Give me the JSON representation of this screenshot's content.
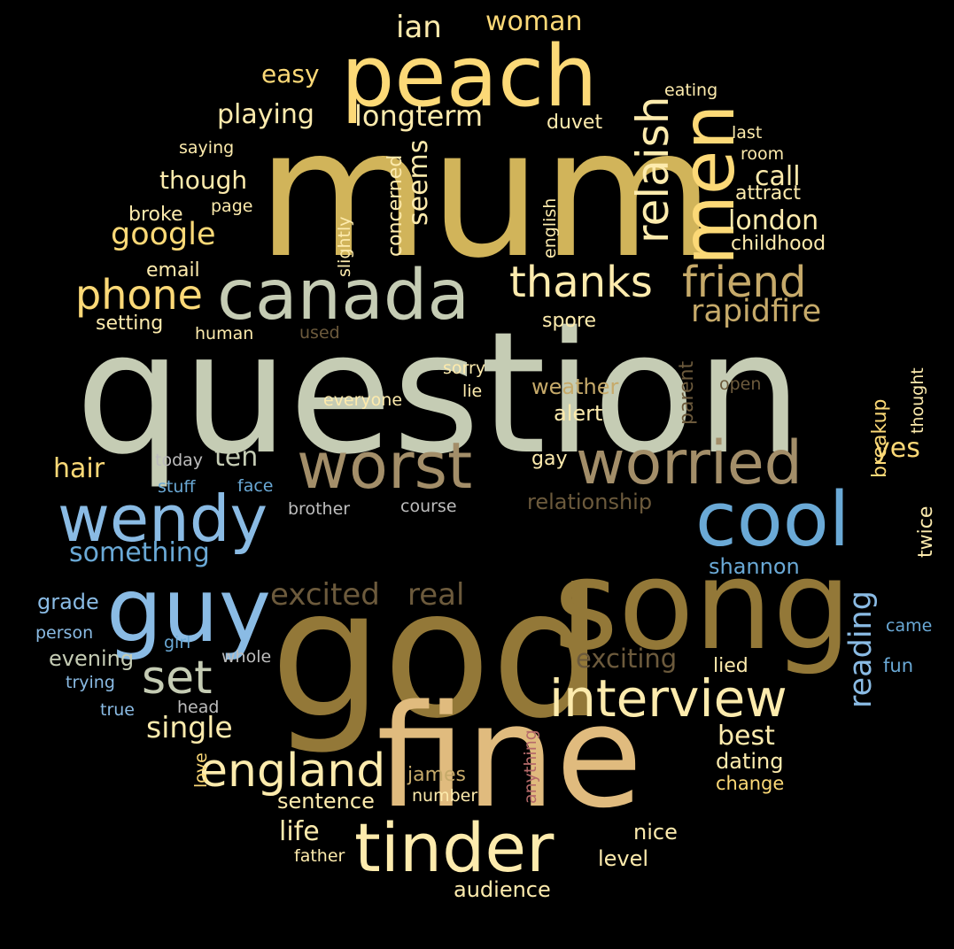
{
  "colors": {
    "background": "#000000",
    "sage": "#c5ccb4",
    "gold": "#d1b45a",
    "yellow": "#fcd977",
    "cream": "#fdebad",
    "khaki": "#c6aa6a",
    "tan": "#a38e69",
    "brown": "#937838",
    "darkbrown": "#6c5a3c",
    "blue": "#6aa9d6",
    "lightblue": "#8abbe4",
    "peach": "#e0bb7e",
    "grey": "#bdbdbd",
    "rose": "#b56a6a"
  },
  "words": [
    {
      "text": "question",
      "color": "sage",
      "weight": 100
    },
    {
      "text": "mum",
      "color": "gold",
      "weight": 95
    },
    {
      "text": "god",
      "color": "brown",
      "weight": 90
    },
    {
      "text": "fine",
      "color": "peach",
      "weight": 88
    },
    {
      "text": "song",
      "color": "brown",
      "weight": 86
    },
    {
      "text": "peach",
      "color": "yellow",
      "weight": 70
    },
    {
      "text": "canada",
      "color": "sage",
      "weight": 60
    },
    {
      "text": "guy",
      "color": "lightblue",
      "weight": 60
    },
    {
      "text": "cool",
      "color": "blue",
      "weight": 58
    },
    {
      "text": "men",
      "color": "yellow",
      "weight": 57
    },
    {
      "text": "tinder",
      "color": "cream",
      "weight": 56
    },
    {
      "text": "worst",
      "color": "tan",
      "weight": 55
    },
    {
      "text": "wendy",
      "color": "lightblue",
      "weight": 52
    },
    {
      "text": "worried",
      "color": "tan",
      "weight": 50
    },
    {
      "text": "interview",
      "color": "cream",
      "weight": 48
    },
    {
      "text": "thanks",
      "color": "cream",
      "weight": 45
    },
    {
      "text": "friend",
      "color": "khaki",
      "weight": 43
    },
    {
      "text": "relaish",
      "color": "cream",
      "weight": 42
    },
    {
      "text": "set",
      "color": "sage",
      "weight": 42
    },
    {
      "text": "england",
      "color": "cream",
      "weight": 42
    },
    {
      "text": "phone",
      "color": "yellow",
      "weight": 40
    },
    {
      "text": "longterm",
      "color": "cream",
      "weight": 35
    },
    {
      "text": "ian",
      "color": "cream",
      "weight": 33
    },
    {
      "text": "google",
      "color": "yellow",
      "weight": 33
    },
    {
      "text": "rapidfire",
      "color": "khaki",
      "weight": 33
    },
    {
      "text": "reading",
      "color": "lightblue",
      "weight": 33
    },
    {
      "text": "excited",
      "color": "darkbrown",
      "weight": 33
    },
    {
      "text": "real",
      "color": "darkbrown",
      "weight": 33
    },
    {
      "text": "single",
      "color": "cream",
      "weight": 31
    },
    {
      "text": "exciting",
      "color": "darkbrown",
      "weight": 30
    },
    {
      "text": "playing",
      "color": "cream",
      "weight": 30
    },
    {
      "text": "woman",
      "color": "yellow",
      "weight": 30
    },
    {
      "text": "life",
      "color": "cream",
      "weight": 30
    },
    {
      "text": "london",
      "color": "cream",
      "weight": 30
    },
    {
      "text": "seems",
      "color": "cream",
      "weight": 29
    },
    {
      "text": "call",
      "color": "cream",
      "weight": 29
    },
    {
      "text": "best",
      "color": "cream",
      "weight": 29
    },
    {
      "text": "ten",
      "color": "sage",
      "weight": 29
    },
    {
      "text": "something",
      "color": "blue",
      "weight": 29
    },
    {
      "text": "hair",
      "color": "yellow",
      "weight": 29
    },
    {
      "text": "yes",
      "color": "yellow",
      "weight": 29
    },
    {
      "text": "easy",
      "color": "yellow",
      "weight": 27
    },
    {
      "text": "though",
      "color": "cream",
      "weight": 27
    },
    {
      "text": "weather",
      "color": "khaki",
      "weight": 24
    },
    {
      "text": "alert",
      "color": "cream",
      "weight": 24
    },
    {
      "text": "relationship",
      "color": "darkbrown",
      "weight": 24
    },
    {
      "text": "shannon",
      "color": "blue",
      "weight": 24
    },
    {
      "text": "dating",
      "color": "cream",
      "weight": 24
    },
    {
      "text": "nice",
      "color": "cream",
      "weight": 24
    },
    {
      "text": "level",
      "color": "cream",
      "weight": 24
    },
    {
      "text": "audience",
      "color": "cream",
      "weight": 24
    },
    {
      "text": "sentence",
      "color": "cream",
      "weight": 24
    },
    {
      "text": "evening",
      "color": "sage",
      "weight": 24
    },
    {
      "text": "grade",
      "color": "lightblue",
      "weight": 24
    },
    {
      "text": "james",
      "color": "khaki",
      "weight": 22
    },
    {
      "text": "twice",
      "color": "cream",
      "weight": 22
    },
    {
      "text": "breakup",
      "color": "yellow",
      "weight": 22
    },
    {
      "text": "parent",
      "color": "darkbrown",
      "weight": 22
    },
    {
      "text": "concerned",
      "color": "cream",
      "weight": 22
    },
    {
      "text": "duvet",
      "color": "cream",
      "weight": 22
    },
    {
      "text": "childhood",
      "color": "cream",
      "weight": 22
    },
    {
      "text": "attract",
      "color": "cream",
      "weight": 22
    },
    {
      "text": "broke",
      "color": "cream",
      "weight": 22
    },
    {
      "text": "email",
      "color": "cream",
      "weight": 22
    },
    {
      "text": "setting",
      "color": "cream",
      "weight": 22
    },
    {
      "text": "spore",
      "color": "cream",
      "weight": 22
    },
    {
      "text": "gay",
      "color": "cream",
      "weight": 22
    },
    {
      "text": "lied",
      "color": "cream",
      "weight": 22
    },
    {
      "text": "fun",
      "color": "blue",
      "weight": 21
    },
    {
      "text": "change",
      "color": "yellow",
      "weight": 21
    },
    {
      "text": "anything",
      "color": "rose",
      "weight": 19
    },
    {
      "text": "saying",
      "color": "cream",
      "weight": 19
    },
    {
      "text": "slightly",
      "color": "cream",
      "weight": 19
    },
    {
      "text": "english",
      "color": "cream",
      "weight": 19
    },
    {
      "text": "eating",
      "color": "cream",
      "weight": 19
    },
    {
      "text": "last",
      "color": "cream",
      "weight": 19
    },
    {
      "text": "room",
      "color": "cream",
      "weight": 19
    },
    {
      "text": "page",
      "color": "cream",
      "weight": 19
    },
    {
      "text": "human",
      "color": "cream",
      "weight": 19
    },
    {
      "text": "used",
      "color": "darkbrown",
      "weight": 19
    },
    {
      "text": "sorry",
      "color": "cream",
      "weight": 19
    },
    {
      "text": "lie",
      "color": "cream",
      "weight": 19
    },
    {
      "text": "everyone",
      "color": "cream",
      "weight": 19
    },
    {
      "text": "open",
      "color": "darkbrown",
      "weight": 19
    },
    {
      "text": "thought",
      "color": "cream",
      "weight": 19
    },
    {
      "text": "today",
      "color": "grey",
      "weight": 19
    },
    {
      "text": "stuff",
      "color": "blue",
      "weight": 19
    },
    {
      "text": "face",
      "color": "blue",
      "weight": 19
    },
    {
      "text": "brother",
      "color": "grey",
      "weight": 19
    },
    {
      "text": "course",
      "color": "grey",
      "weight": 19
    },
    {
      "text": "came",
      "color": "blue",
      "weight": 19
    },
    {
      "text": "person",
      "color": "lightblue",
      "weight": 19
    },
    {
      "text": "girl",
      "color": "blue",
      "weight": 19
    },
    {
      "text": "whole",
      "color": "grey",
      "weight": 19
    },
    {
      "text": "trying",
      "color": "lightblue",
      "weight": 19
    },
    {
      "text": "true",
      "color": "lightblue",
      "weight": 19
    },
    {
      "text": "head",
      "color": "grey",
      "weight": 19
    },
    {
      "text": "love",
      "color": "yellow",
      "weight": 19
    },
    {
      "text": "number",
      "color": "cream",
      "weight": 19
    },
    {
      "text": "father",
      "color": "cream",
      "weight": 19
    }
  ]
}
